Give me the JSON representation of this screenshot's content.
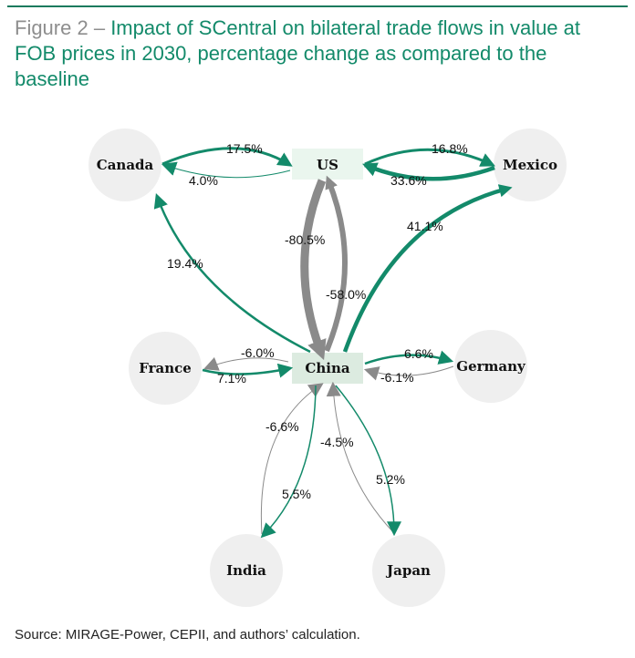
{
  "figure": {
    "number": "Figure 2 –",
    "title": "Impact of SCentral on bilateral trade flows in value at FOB prices in 2030,  percentage change as compared to the baseline"
  },
  "colors": {
    "increase": "#138a6a",
    "decrease": "#8a8a8a",
    "node_circle": "#efefef",
    "node_rect": "#e2efe6"
  },
  "nodes": {
    "canada": "Canada",
    "us": "US",
    "mexico": "Mexico",
    "france": "France",
    "china": "China",
    "germany": "Germany",
    "india": "India",
    "japan": "Japan"
  },
  "edges": {
    "canada_us": "17.5%",
    "us_canada": "4.0%",
    "us_mexico": "16.8%",
    "mexico_us": "33.6%",
    "us_china": "-80.5%",
    "china_us": "-58.0%",
    "china_mexico": "41.1%",
    "china_canada": "19.4%",
    "france_china": "-6.0%",
    "china_france": "7.1%",
    "china_germany": "6.6%",
    "germany_china": "-6.1%",
    "india_china": "-6.6%",
    "china_india": "5.5%",
    "japan_china": "-4.5%",
    "china_japan": "5.2%"
  },
  "source": "Source: MIRAGE-Power, CEPII, and authors’ calculation."
}
